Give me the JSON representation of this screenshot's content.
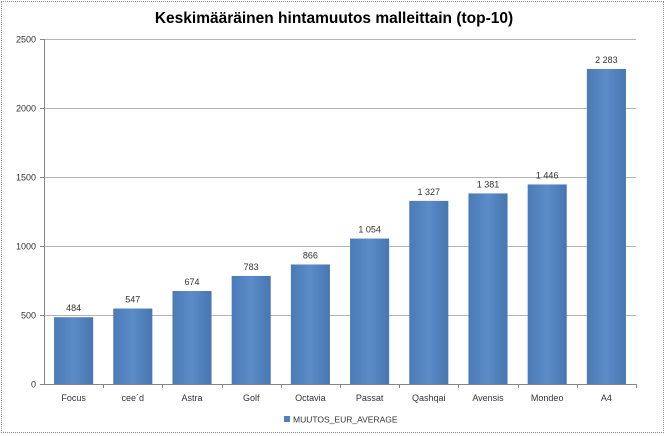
{
  "chart_data": {
    "type": "bar",
    "title": "Keskimääräinen hintamuutos malleittain (top-10)",
    "categories": [
      "Focus",
      "cee´d",
      "Astra",
      "Golf",
      "Octavia",
      "Passat",
      "Qashqai",
      "Avensis",
      "Mondeo",
      "A4"
    ],
    "series": [
      {
        "name": "MUUTOS_EUR_AVERAGE",
        "values": [
          484,
          547,
          674,
          783,
          866,
          1054,
          1327,
          1381,
          1446,
          2283
        ],
        "labels": [
          "484",
          "547",
          "674",
          "783",
          "866",
          "1 054",
          "1 327",
          "1 381",
          "1 446",
          "2 283"
        ],
        "color": "#4f81bd"
      }
    ],
    "ylim": [
      0,
      2500
    ],
    "yticks": [
      0,
      500,
      1000,
      1500,
      2000,
      2500
    ],
    "grid": true,
    "legend_position": "bottom",
    "xlabel": "",
    "ylabel": ""
  }
}
